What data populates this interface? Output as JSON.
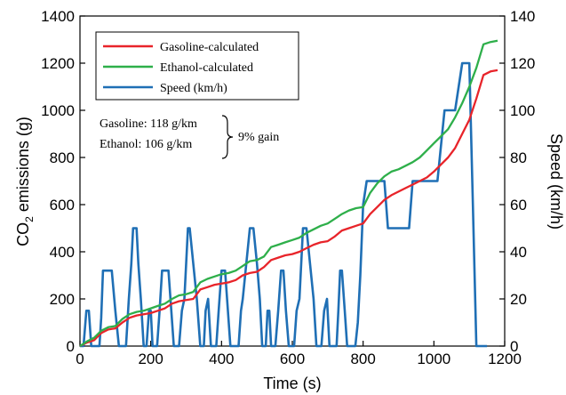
{
  "chart_data": {
    "type": "line",
    "title": "",
    "xlabel": "Time (s)",
    "ylabel_left": {
      "main": "CO",
      "sub": "2",
      "rest": " emissions (g)"
    },
    "ylabel_right": "Speed (km/h)",
    "xlim": [
      0,
      1200
    ],
    "ylim_left": [
      0,
      1400
    ],
    "ylim_right": [
      0,
      140
    ],
    "x_ticks": [
      "0",
      "200",
      "400",
      "600",
      "800",
      "1000",
      "1200"
    ],
    "x_tick_values": [
      0,
      200,
      400,
      600,
      800,
      1000,
      1200
    ],
    "y_left_ticks": [
      "0",
      "200",
      "400",
      "600",
      "800",
      "1000",
      "1200",
      "1400"
    ],
    "y_left_tick_values": [
      0,
      200,
      400,
      600,
      800,
      1000,
      1200,
      1400
    ],
    "y_right_ticks": [
      "0",
      "20",
      "40",
      "60",
      "80",
      "100",
      "120",
      "140"
    ],
    "y_right_tick_values": [
      0,
      20,
      40,
      60,
      80,
      100,
      120,
      140
    ],
    "grid": false,
    "legend_position": "top-left",
    "series": [
      {
        "name": "Gasoline-calculated",
        "color": "#e8242a",
        "axis": "left",
        "x": [
          0,
          20,
          40,
          60,
          80,
          100,
          120,
          140,
          160,
          180,
          200,
          220,
          240,
          260,
          280,
          300,
          320,
          340,
          360,
          380,
          400,
          420,
          440,
          460,
          480,
          500,
          520,
          540,
          560,
          580,
          600,
          620,
          640,
          660,
          680,
          700,
          720,
          740,
          760,
          780,
          800,
          820,
          840,
          860,
          880,
          900,
          920,
          940,
          960,
          980,
          1000,
          1020,
          1040,
          1060,
          1080,
          1100,
          1120,
          1140,
          1160,
          1180
        ],
        "values": [
          0,
          15,
          25,
          55,
          70,
          75,
          100,
          120,
          130,
          135,
          140,
          150,
          160,
          180,
          190,
          195,
          200,
          240,
          250,
          260,
          265,
          270,
          280,
          300,
          310,
          315,
          335,
          365,
          375,
          385,
          390,
          400,
          415,
          430,
          440,
          445,
          465,
          490,
          500,
          510,
          520,
          560,
          590,
          620,
          640,
          655,
          670,
          685,
          700,
          715,
          740,
          770,
          800,
          840,
          900,
          960,
          1050,
          1150,
          1165,
          1170
        ]
      },
      {
        "name": "Ethanol-calculated",
        "color": "#2eaf4a",
        "axis": "left",
        "x": [
          0,
          20,
          40,
          60,
          80,
          100,
          120,
          140,
          160,
          180,
          200,
          220,
          240,
          260,
          280,
          300,
          320,
          340,
          360,
          380,
          400,
          420,
          440,
          460,
          480,
          500,
          520,
          540,
          560,
          580,
          600,
          620,
          640,
          660,
          680,
          700,
          720,
          740,
          760,
          780,
          800,
          820,
          840,
          860,
          880,
          900,
          920,
          940,
          960,
          980,
          1000,
          1020,
          1040,
          1060,
          1080,
          1100,
          1120,
          1140,
          1160,
          1180
        ],
        "values": [
          0,
          20,
          35,
          65,
          80,
          85,
          115,
          135,
          145,
          150,
          160,
          170,
          180,
          200,
          215,
          220,
          230,
          270,
          285,
          295,
          305,
          310,
          320,
          340,
          360,
          365,
          380,
          420,
          430,
          440,
          450,
          460,
          480,
          495,
          510,
          520,
          540,
          560,
          575,
          585,
          590,
          650,
          690,
          720,
          740,
          750,
          765,
          780,
          800,
          830,
          860,
          890,
          920,
          970,
          1030,
          1100,
          1180,
          1280,
          1290,
          1295
        ]
      },
      {
        "name": "Speed (km/h)",
        "color": "#1f6fb5",
        "axis": "right",
        "x": [
          0,
          10,
          18,
          25,
          32,
          40,
          48,
          55,
          60,
          65,
          70,
          80,
          90,
          100,
          110,
          120,
          130,
          138,
          145,
          150,
          155,
          160,
          165,
          172,
          180,
          188,
          195,
          200,
          205,
          210,
          218,
          225,
          232,
          240,
          250,
          258,
          265,
          272,
          280,
          288,
          295,
          300,
          305,
          310,
          320,
          330,
          340,
          345,
          350,
          355,
          362,
          370,
          378,
          385,
          392,
          400,
          405,
          410,
          418,
          425,
          432,
          440,
          448,
          455,
          460,
          470,
          480,
          490,
          500,
          508,
          515,
          520,
          525,
          530,
          535,
          540,
          545,
          552,
          560,
          568,
          575,
          582,
          590,
          598,
          605,
          612,
          620,
          625,
          630,
          640,
          650,
          660,
          668,
          675,
          682,
          690,
          698,
          705,
          712,
          720,
          725,
          730,
          735,
          740,
          748,
          755,
          762,
          770,
          778,
          785,
          792,
          800,
          810,
          820,
          830,
          840,
          850,
          860,
          870,
          880,
          890,
          900,
          910,
          920,
          930,
          940,
          950,
          960,
          970,
          980,
          990,
          1000,
          1010,
          1020,
          1030,
          1040,
          1050,
          1060,
          1070,
          1080,
          1090,
          1100,
          1110,
          1120,
          1130,
          1140,
          1150
        ],
        "values": [
          0,
          0,
          15,
          15,
          0,
          0,
          0,
          0,
          12,
          32,
          32,
          32,
          32,
          15,
          0,
          0,
          0,
          20,
          35,
          50,
          50,
          50,
          35,
          20,
          0,
          0,
          15,
          15,
          0,
          0,
          0,
          15,
          32,
          32,
          32,
          15,
          0,
          0,
          0,
          15,
          20,
          35,
          50,
          50,
          35,
          20,
          0,
          0,
          0,
          15,
          20,
          0,
          0,
          0,
          15,
          32,
          32,
          32,
          15,
          0,
          0,
          0,
          0,
          15,
          20,
          35,
          50,
          50,
          35,
          20,
          0,
          0,
          0,
          15,
          15,
          0,
          0,
          0,
          15,
          32,
          32,
          15,
          0,
          0,
          0,
          15,
          20,
          35,
          50,
          50,
          35,
          20,
          0,
          0,
          0,
          15,
          20,
          0,
          0,
          0,
          0,
          15,
          32,
          32,
          15,
          0,
          0,
          0,
          0,
          10,
          30,
          60,
          70,
          70,
          70,
          70,
          70,
          70,
          50,
          50,
          50,
          50,
          50,
          50,
          50,
          70,
          70,
          70,
          70,
          70,
          70,
          70,
          70,
          85,
          100,
          100,
          100,
          100,
          110,
          120,
          120,
          120,
          60,
          0,
          0,
          0,
          0
        ]
      }
    ],
    "annotation": {
      "gasoline": "Gasoline: 118 g/km",
      "ethanol": "Ethanol: 106 g/km",
      "gain": "9% gain"
    }
  }
}
